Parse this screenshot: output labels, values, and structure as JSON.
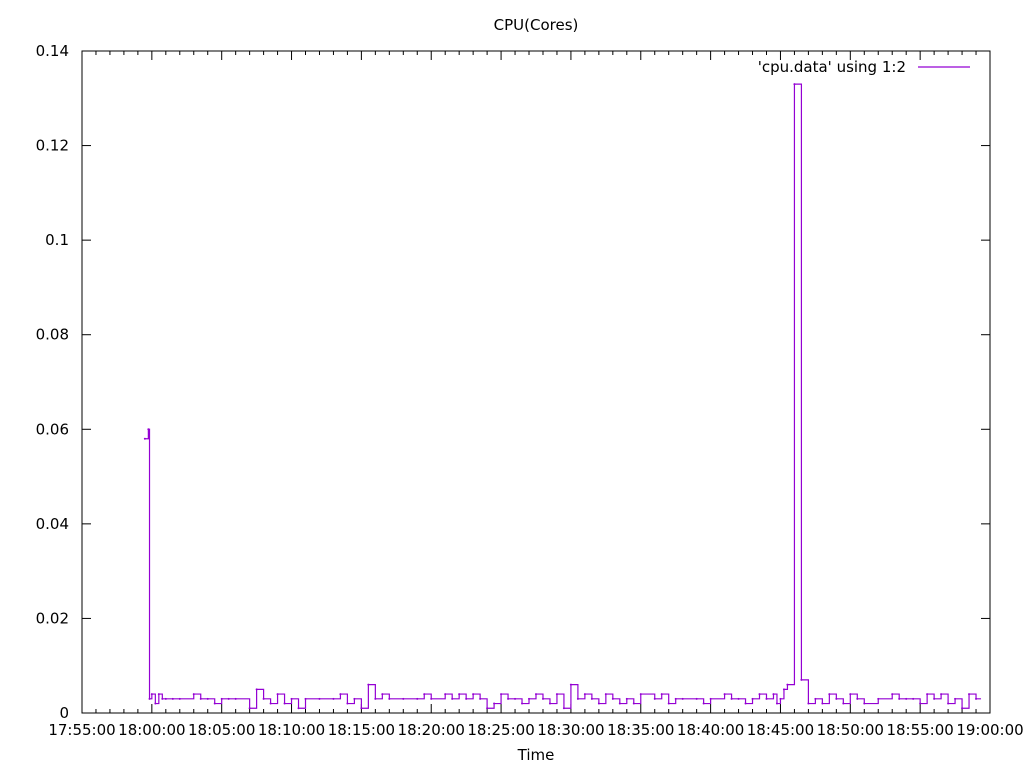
{
  "chart_data": {
    "type": "line",
    "title": "CPU(Cores)",
    "xlabel": "Time",
    "ylabel": "",
    "xlim": [
      "17:55:00",
      "19:00:00"
    ],
    "ylim": [
      0,
      0.14
    ],
    "x_ticks": [
      "17:55:00",
      "18:00:00",
      "18:05:00",
      "18:10:00",
      "18:15:00",
      "18:20:00",
      "18:25:00",
      "18:30:00",
      "18:35:00",
      "18:40:00",
      "18:45:00",
      "18:50:00",
      "18:55:00",
      "19:00:00"
    ],
    "y_ticks": [
      "0",
      "0.02",
      "0.04",
      "0.06",
      "0.08",
      "0.1",
      "0.12",
      "0.14"
    ],
    "grid": false,
    "legend_position": "top-right",
    "series": [
      {
        "name": "'cpu.data' using 1:2",
        "color": "#9400d3",
        "step": true,
        "x": [
          "17:59:30",
          "17:59:45",
          "17:59:50",
          "18:00:00",
          "18:00:15",
          "18:00:30",
          "18:00:45",
          "18:01:00",
          "18:01:30",
          "18:02:00",
          "18:03:00",
          "18:03:30",
          "18:04:00",
          "18:04:30",
          "18:05:00",
          "18:05:30",
          "18:06:00",
          "18:07:00",
          "18:07:30",
          "18:08:00",
          "18:08:30",
          "18:09:00",
          "18:09:30",
          "18:10:00",
          "18:10:30",
          "18:11:00",
          "18:12:00",
          "18:13:00",
          "18:13:30",
          "18:14:00",
          "18:14:30",
          "18:15:00",
          "18:15:30",
          "18:16:00",
          "18:16:30",
          "18:17:00",
          "18:18:00",
          "18:19:00",
          "18:19:30",
          "18:20:00",
          "18:21:00",
          "18:21:30",
          "18:22:00",
          "18:22:30",
          "18:23:00",
          "18:23:30",
          "18:24:00",
          "18:24:30",
          "18:25:00",
          "18:25:30",
          "18:26:00",
          "18:26:30",
          "18:27:00",
          "18:27:30",
          "18:28:00",
          "18:28:30",
          "18:29:00",
          "18:29:30",
          "18:30:00",
          "18:30:30",
          "18:31:00",
          "18:31:30",
          "18:32:00",
          "18:32:30",
          "18:33:00",
          "18:33:30",
          "18:34:00",
          "18:34:30",
          "18:35:00",
          "18:36:00",
          "18:36:30",
          "18:37:00",
          "18:37:30",
          "18:38:00",
          "18:39:00",
          "18:39:30",
          "18:40:00",
          "18:41:00",
          "18:41:30",
          "18:42:00",
          "18:42:30",
          "18:43:00",
          "18:43:30",
          "18:44:00",
          "18:44:30",
          "18:44:45",
          "18:45:00",
          "18:45:15",
          "18:45:30",
          "18:46:00",
          "18:46:30",
          "18:47:00",
          "18:47:30",
          "18:48:00",
          "18:48:30",
          "18:49:00",
          "18:49:30",
          "18:50:00",
          "18:50:30",
          "18:51:00",
          "18:52:00",
          "18:53:00",
          "18:53:30",
          "18:54:00",
          "18:54:30",
          "18:55:00",
          "18:55:30",
          "18:56:00",
          "18:56:30",
          "18:57:00",
          "18:57:30",
          "18:58:00",
          "18:58:30",
          "18:59:00"
        ],
        "y": [
          0.058,
          0.06,
          0.003,
          0.004,
          0.002,
          0.004,
          0.003,
          0.003,
          0.003,
          0.003,
          0.004,
          0.003,
          0.003,
          0.002,
          0.003,
          0.003,
          0.003,
          0.001,
          0.005,
          0.003,
          0.002,
          0.004,
          0.002,
          0.003,
          0.001,
          0.003,
          0.003,
          0.003,
          0.004,
          0.002,
          0.003,
          0.001,
          0.006,
          0.003,
          0.004,
          0.003,
          0.003,
          0.003,
          0.004,
          0.003,
          0.004,
          0.003,
          0.004,
          0.003,
          0.004,
          0.003,
          0.001,
          0.002,
          0.004,
          0.003,
          0.003,
          0.002,
          0.003,
          0.004,
          0.003,
          0.002,
          0.004,
          0.001,
          0.006,
          0.003,
          0.004,
          0.003,
          0.002,
          0.004,
          0.003,
          0.002,
          0.003,
          0.002,
          0.004,
          0.003,
          0.004,
          0.002,
          0.003,
          0.003,
          0.003,
          0.002,
          0.003,
          0.004,
          0.003,
          0.003,
          0.002,
          0.003,
          0.004,
          0.003,
          0.004,
          0.002,
          0.003,
          0.005,
          0.006,
          0.133,
          0.007,
          0.002,
          0.003,
          0.002,
          0.004,
          0.003,
          0.002,
          0.004,
          0.003,
          0.002,
          0.003,
          0.004,
          0.003,
          0.003,
          0.003,
          0.002,
          0.004,
          0.003,
          0.004,
          0.002,
          0.003,
          0.001,
          0.004,
          0.003
        ]
      }
    ]
  }
}
